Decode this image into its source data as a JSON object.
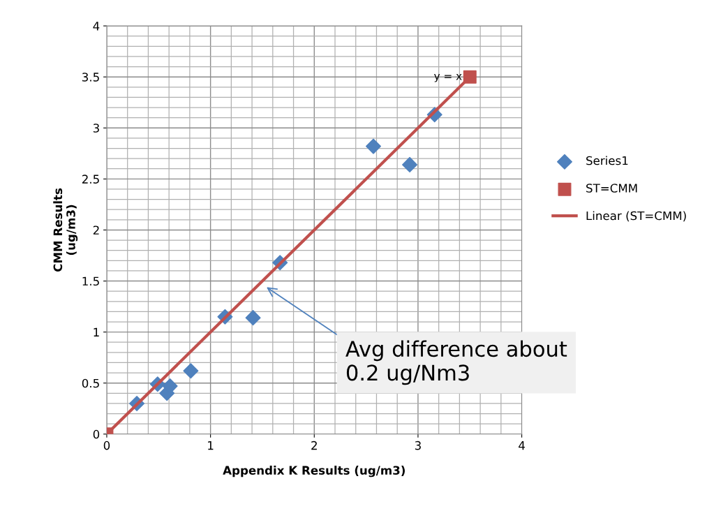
{
  "chart_data": {
    "type": "scatter",
    "xlabel": "Appendix K Results (ug/m3)",
    "ylabel": "CMM Results\n(ug/m3)",
    "xlim": [
      0,
      4
    ],
    "ylim": [
      0,
      4
    ],
    "xticks": [
      0,
      1,
      2,
      3,
      4
    ],
    "yticks": [
      0,
      {
        "value": 0.5,
        "label": "0.5"
      },
      1,
      {
        "value": 1.5,
        "label": "1.5"
      },
      2,
      {
        "value": 2.5,
        "label": "2.5"
      },
      3,
      {
        "value": 3.5,
        "label": "3.5"
      },
      4
    ],
    "grid": true,
    "legend": "right",
    "series": [
      {
        "name": "Series1",
        "marker": "diamond",
        "color": "#4f81bd",
        "x": [
          0.29,
          0.49,
          0.58,
          0.61,
          0.81,
          1.14,
          1.41,
          1.67,
          2.57,
          2.92,
          3.16
        ],
        "values": [
          0.3,
          0.49,
          0.4,
          0.47,
          0.62,
          1.15,
          1.14,
          1.68,
          2.82,
          2.64,
          3.13
        ]
      },
      {
        "name": "ST=CMM",
        "marker": "square",
        "color": "#c0504d",
        "x": [
          0,
          3.5
        ],
        "values": [
          0,
          3.5
        ]
      },
      {
        "name": "Linear (ST=CMM)",
        "type": "line",
        "marker": "none",
        "line_style": "solid",
        "color": "#c0504d",
        "x": [
          0,
          3.5
        ],
        "values": [
          0,
          3.5
        ]
      }
    ],
    "annotations": [
      {
        "text": "y = x",
        "x": 3.5,
        "y": 3.5
      },
      "Avg difference about\n0.2 ug/Nm3"
    ]
  }
}
